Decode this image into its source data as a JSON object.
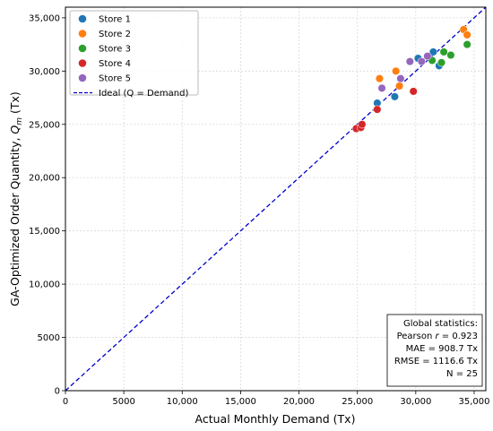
{
  "chart_data": {
    "type": "scatter",
    "title": "",
    "xlabel": "Actual Monthly Demand (Tx)",
    "ylabel_prefix": "GA-Optimized Order Quantity, ",
    "ylabel_symbol": "Q",
    "ylabel_subscript": "m",
    "ylabel_suffix": " (Tx)",
    "xlim": [
      0,
      36000
    ],
    "ylim": [
      0,
      36000
    ],
    "grid": true,
    "x_ticks": [
      0,
      5000,
      10000,
      15000,
      20000,
      25000,
      30000,
      35000
    ],
    "x_tick_labels": [
      "0",
      "5000",
      "10,000",
      "15,000",
      "20,000",
      "25,000",
      "30,000",
      "35,000"
    ],
    "y_ticks": [
      0,
      5000,
      10000,
      15000,
      20000,
      25000,
      30000,
      35000
    ],
    "y_tick_labels": [
      "0",
      "5000",
      "10,000",
      "15,000",
      "20,000",
      "25,000",
      "30,000",
      "35,000"
    ],
    "legend_position": "top-left",
    "series": [
      {
        "name": "Store 1",
        "color": "#1f77b4",
        "x": [
          26700,
          28200,
          30200,
          31500,
          32000
        ],
        "y": [
          27000,
          27600,
          31200,
          31800,
          30500
        ]
      },
      {
        "name": "Store 2",
        "color": "#ff7f0e",
        "x": [
          26900,
          28300,
          28600,
          34100,
          34400
        ],
        "y": [
          29300,
          30000,
          28600,
          33900,
          33400
        ]
      },
      {
        "name": "Store 3",
        "color": "#2ca02c",
        "x": [
          31400,
          32200,
          32400,
          33000,
          34400
        ],
        "y": [
          31000,
          30800,
          31800,
          31500,
          32500
        ]
      },
      {
        "name": "Store 4",
        "color": "#d62728",
        "x": [
          24900,
          25300,
          25400,
          26700,
          29800
        ],
        "y": [
          24600,
          24700,
          25000,
          26400,
          28100
        ]
      },
      {
        "name": "Store 5",
        "color": "#9467bd",
        "x": [
          27100,
          28700,
          29500,
          30500,
          31000
        ],
        "y": [
          28400,
          29300,
          30900,
          30900,
          31400
        ]
      }
    ],
    "reference_line": {
      "name": "Ideal (Q = Demand)",
      "color": "#0000cc",
      "style": "dashed",
      "from": [
        0,
        0
      ],
      "to": [
        36000,
        36000
      ]
    },
    "annotations": {
      "stats_title": "Global statistics:",
      "pearson_prefix": "Pearson ",
      "pearson_symbol": "r",
      "pearson_value": " = 0.923",
      "mae": "MAE = 908.7 Tx",
      "rmse": "RMSE = 1116.6 Tx",
      "n": "N = 25"
    }
  }
}
